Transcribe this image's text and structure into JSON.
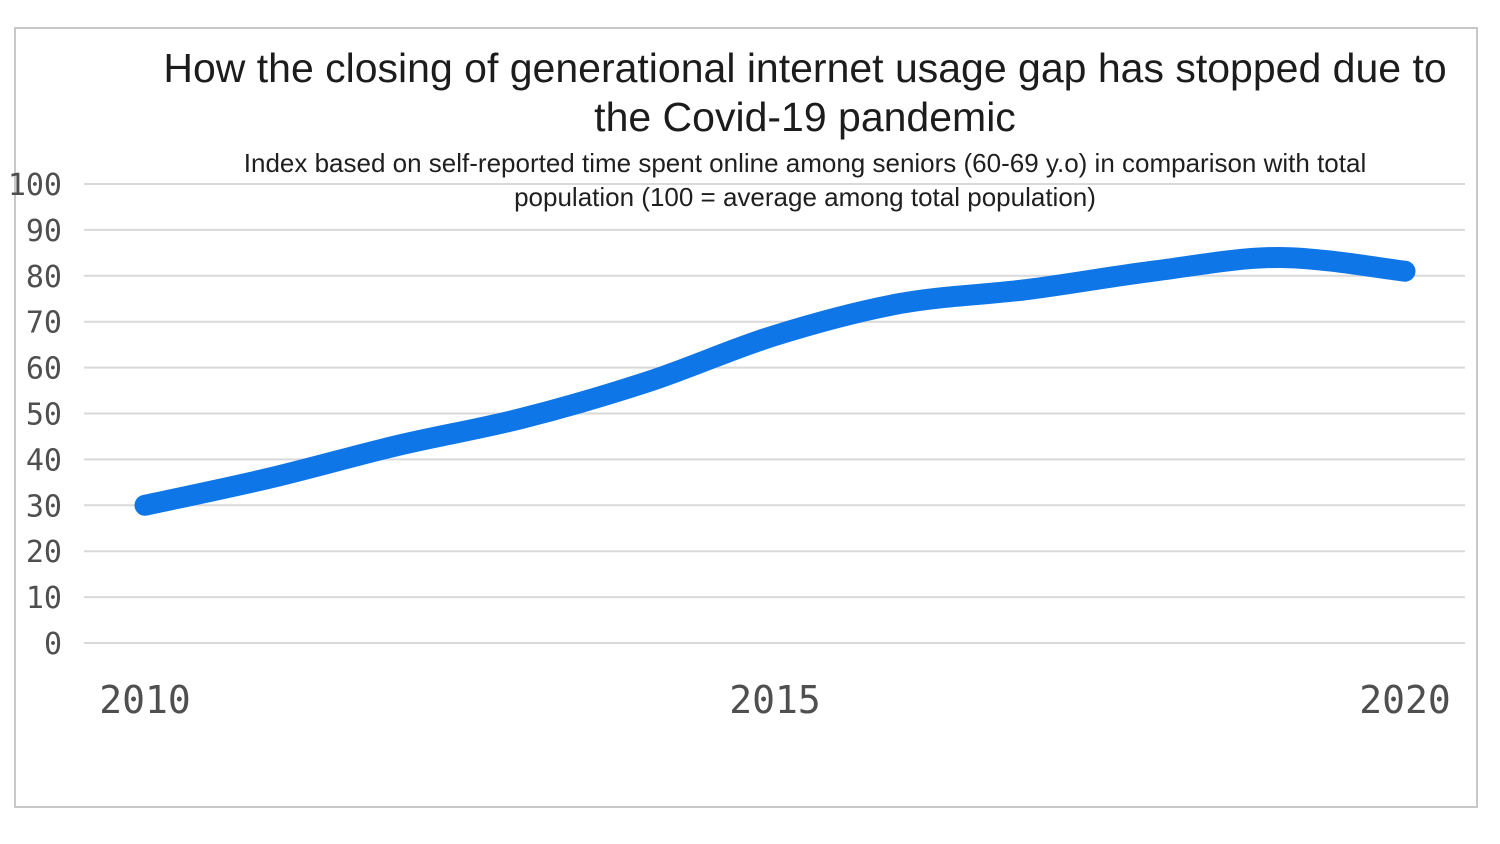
{
  "colors": {
    "line": "#0f76e8",
    "gridline": "#d9d9d9",
    "tick_text": "#4f4f4f",
    "title_text": "#1c1c1c",
    "frame_border": "#c8c8c8",
    "background": "#ffffff"
  },
  "chart_data": {
    "type": "line",
    "title": "How the closing of generational internet usage gap has stopped due to the Covid-19 pandemic",
    "title_lines": [
      "How the closing of generational internet usage gap has stopped due to",
      "the Covid-19 pandemic"
    ],
    "subtitle": "Index based on self-reported time spent online among seniors (60-69 y.o) in comparison with total population (100 = average among total population)",
    "subtitle_lines": [
      "Index based on self-reported time spent online among seniors (60-69 y.o) in comparison with total",
      "population (100 = average among total population)"
    ],
    "x": [
      2010,
      2011,
      2012,
      2013,
      2014,
      2015,
      2016,
      2017,
      2018,
      2019,
      2020
    ],
    "values": [
      30,
      36,
      43,
      49,
      57,
      67,
      74,
      77,
      81,
      84,
      81
    ],
    "xlabel": "",
    "ylabel": "",
    "ylim": [
      0,
      100
    ],
    "yticks": [
      0,
      10,
      20,
      30,
      40,
      50,
      60,
      70,
      80,
      90,
      100
    ],
    "xticks": [
      2010,
      2015,
      2020
    ],
    "grid": "horizontal",
    "legend": "none",
    "line_style": "smooth-thick"
  }
}
